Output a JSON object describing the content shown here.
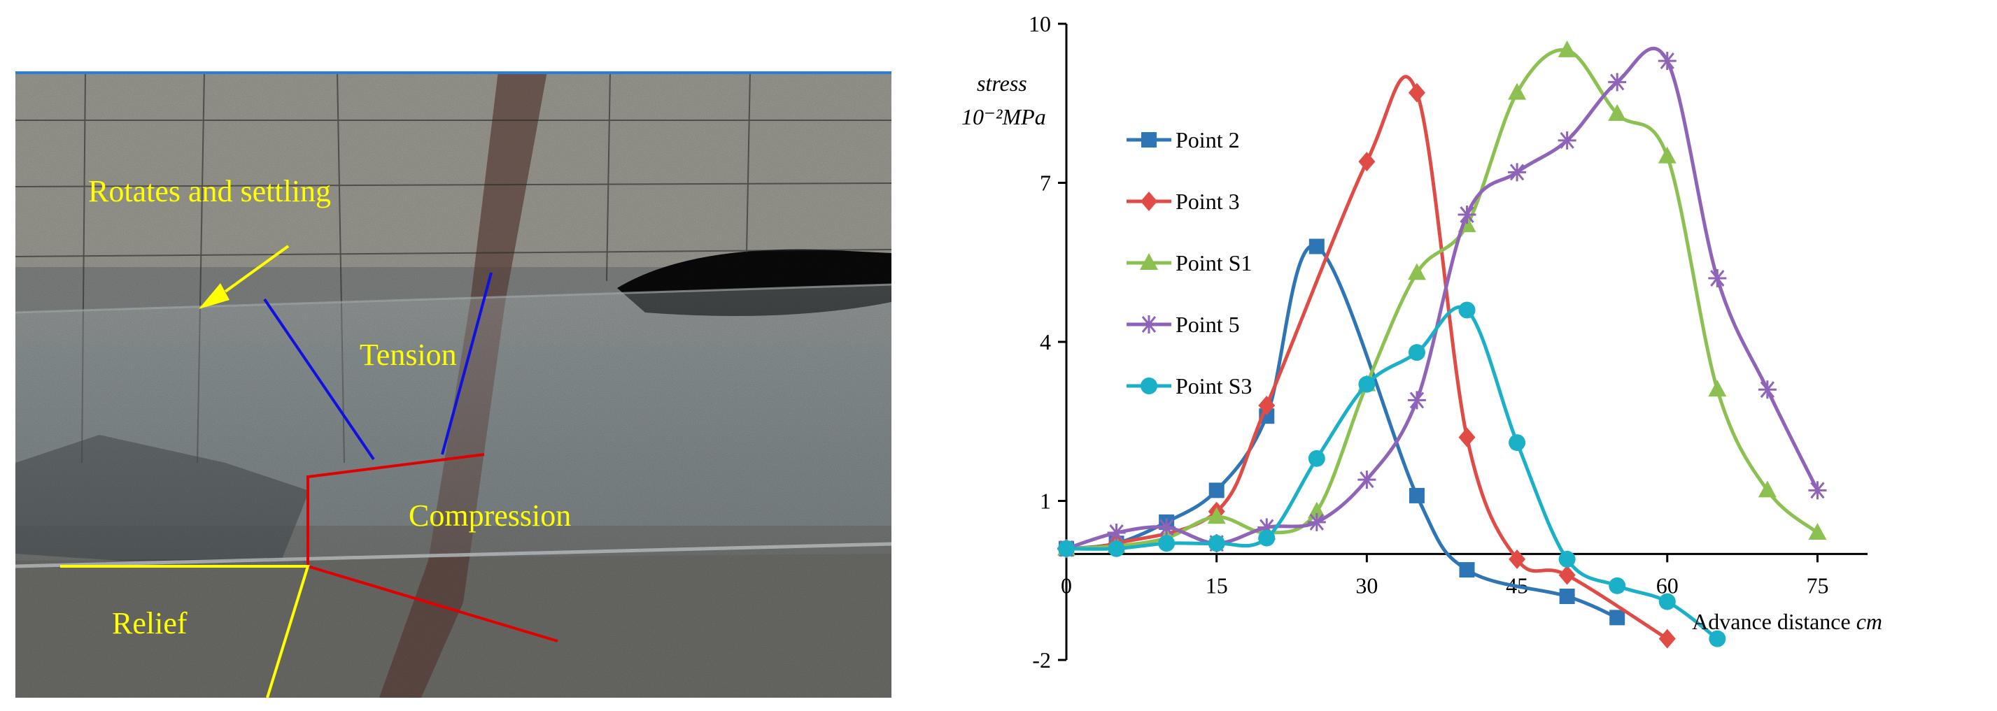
{
  "photo": {
    "labels": {
      "rotates": "Rotates and settling",
      "tension": "Tension",
      "compression": "Compression",
      "relief": "Relief"
    }
  },
  "chart_data": {
    "type": "line",
    "ylabel_line1": "stress",
    "ylabel_line2": "10⁻²MPa",
    "xlabel_text": "Advance distance ",
    "xlabel_unit": "cm",
    "xlim": [
      0,
      80
    ],
    "ylim": [
      -2,
      10
    ],
    "xticks": [
      0,
      15,
      30,
      45,
      60,
      75
    ],
    "yticks": [
      -2,
      1,
      4,
      7,
      10
    ],
    "legend_position": "upper-left",
    "grid": false,
    "series": [
      {
        "name": "Point 2",
        "color": "#2e75b6",
        "marker": "square",
        "x": [
          0,
          5,
          10,
          15,
          20,
          25,
          35,
          40,
          50,
          55
        ],
        "y": [
          0.1,
          0.2,
          0.6,
          1.2,
          2.6,
          5.8,
          1.1,
          -0.3,
          -0.8,
          -1.2
        ]
      },
      {
        "name": "Point 3",
        "color": "#e04b45",
        "marker": "diamond",
        "x": [
          0,
          5,
          15,
          20,
          30,
          35,
          40,
          45,
          50,
          60
        ],
        "y": [
          0.1,
          0.2,
          0.8,
          2.8,
          7.4,
          8.7,
          2.2,
          -0.1,
          -0.4,
          -1.6
        ]
      },
      {
        "name": "Point S1",
        "color": "#8cc152",
        "marker": "triangle",
        "x": [
          0,
          5,
          10,
          15,
          20,
          25,
          30,
          35,
          40,
          45,
          50,
          55,
          60,
          65,
          70,
          75
        ],
        "y": [
          0.1,
          0.15,
          0.3,
          0.7,
          0.4,
          0.8,
          3.2,
          5.3,
          6.2,
          8.7,
          9.5,
          8.3,
          7.5,
          3.1,
          1.2,
          0.4
        ]
      },
      {
        "name": "Point 5",
        "color": "#8e63b8",
        "marker": "asterisk",
        "x": [
          0,
          5,
          10,
          15,
          20,
          25,
          30,
          35,
          40,
          45,
          50,
          55,
          60,
          65,
          70,
          75
        ],
        "y": [
          0.1,
          0.4,
          0.5,
          0.2,
          0.5,
          0.6,
          1.4,
          2.9,
          6.4,
          7.2,
          7.8,
          8.9,
          9.3,
          5.2,
          3.1,
          1.2
        ]
      },
      {
        "name": "Point S3",
        "color": "#1ab0c8",
        "marker": "circle",
        "x": [
          0,
          5,
          10,
          15,
          20,
          25,
          30,
          35,
          40,
          45,
          50,
          55,
          60,
          65
        ],
        "y": [
          0.1,
          0.1,
          0.2,
          0.2,
          0.3,
          1.8,
          3.2,
          3.8,
          4.6,
          2.1,
          -0.1,
          -0.6,
          -0.9,
          -1.6
        ]
      }
    ]
  }
}
